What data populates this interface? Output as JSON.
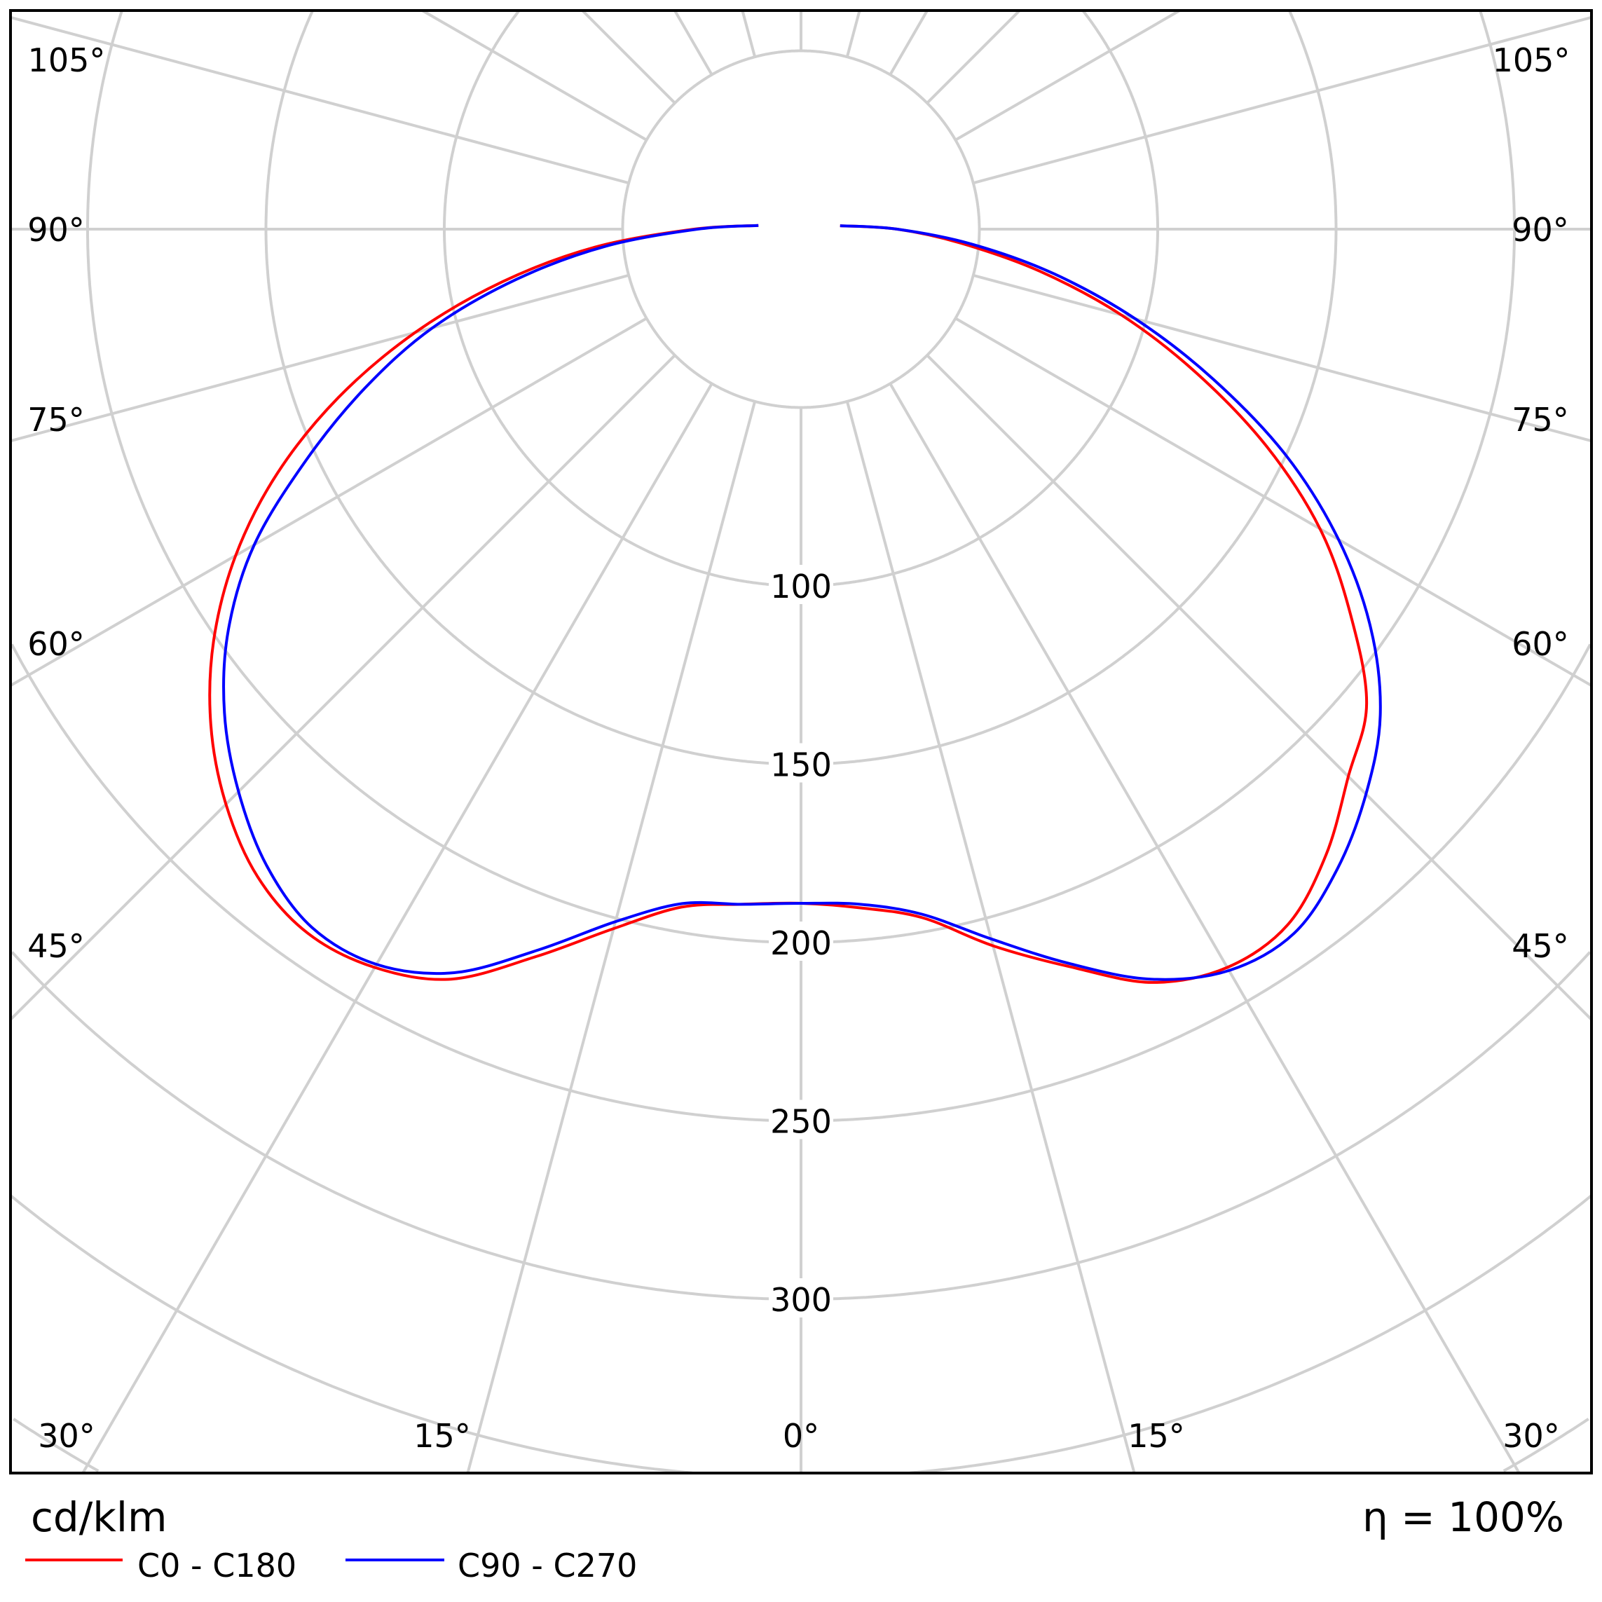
{
  "chart_data": {
    "type": "polar",
    "unit_label": "cd/klm",
    "efficiency_label": "η = 100%",
    "radial_ticks": [
      50,
      100,
      150,
      200,
      250,
      300,
      350,
      400
    ],
    "radial_tick_labels": [
      "100",
      "150",
      "200",
      "250",
      "300"
    ],
    "angle_step_deg": 15,
    "angle_labels_left": [
      "105°",
      "90°",
      "75°",
      "60°",
      "45°",
      "30°"
    ],
    "angle_labels_right": [
      "105°",
      "90°",
      "75°",
      "60°",
      "45°",
      "30°"
    ],
    "angle_labels_bottom": [
      "15°",
      "0°",
      "15°"
    ],
    "grid": true,
    "legend_placement": "bottom-left",
    "angles_deg": [
      0,
      5,
      10,
      15,
      20,
      25,
      30,
      35,
      40,
      45,
      50,
      55,
      60,
      65,
      70,
      75,
      80,
      85,
      90,
      95
    ],
    "series": [
      {
        "name": "C0 - C180",
        "color": "#ff0000",
        "c0": [
          189,
          191,
          196,
          208,
          220,
          233,
          239,
          238,
          229,
          217,
          207,
          188,
          168,
          144,
          118,
          93,
          68,
          45,
          27,
          11
        ],
        "c180": [
          189,
          190,
          193,
          203,
          217,
          232,
          239,
          241,
          237,
          228,
          216,
          201,
          183,
          162,
          138,
          112,
          85,
          58,
          30,
          12
        ]
      },
      {
        "name": "C90 - C270",
        "color": "#0000ff",
        "c90": [
          189,
          190,
          195,
          206,
          219,
          232,
          240,
          241,
          234,
          224,
          212,
          195,
          174,
          150,
          123,
          97,
          72,
          48,
          27,
          11
        ],
        "c270": [
          189,
          190,
          192,
          201,
          215,
          230,
          238,
          239,
          233,
          223,
          211,
          196,
          177,
          153,
          130,
          107,
          81,
          55,
          29,
          12
        ]
      }
    ]
  }
}
